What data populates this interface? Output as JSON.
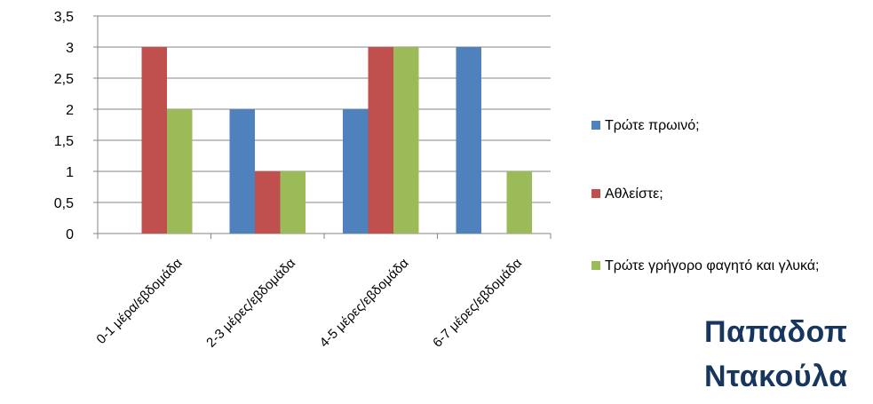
{
  "chart_data": {
    "type": "bar",
    "categories": [
      "0-1 μέρα/εβδομάδα",
      "2-3 μέρες/εβδομάδα",
      "4-5 μέρες/εβδομάδα",
      "6-7 μέρες/εβδομάδα"
    ],
    "series": [
      {
        "name": "Τρώτε πρωινό;",
        "values": [
          0,
          2,
          2,
          3
        ],
        "color": "#4f81bd"
      },
      {
        "name": "Αθλείστε;",
        "values": [
          3,
          1,
          3,
          0
        ],
        "color": "#c0504d"
      },
      {
        "name": "Τρώτε γρήγορο φαγητό και γλυκά;",
        "values": [
          2,
          1,
          3,
          1
        ],
        "color": "#9bbb59"
      }
    ],
    "ylim": [
      0,
      3.5
    ],
    "yticks": [
      "0",
      "0,5",
      "1",
      "1,5",
      "2",
      "2,5",
      "3",
      "3,5"
    ],
    "grid": true,
    "legend_position": "right"
  },
  "author": {
    "line1": "Παπαδοπ",
    "line2": "Ντακούλα"
  }
}
